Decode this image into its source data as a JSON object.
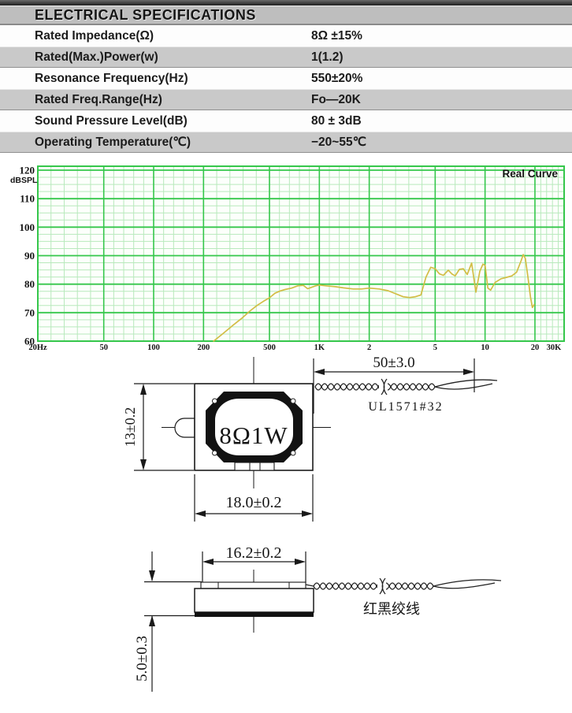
{
  "spec_table": {
    "title": "ELECTRICAL SPECIFICATIONS",
    "rows": [
      {
        "label": "Rated Impedance(Ω)",
        "value": "8Ω ±15%"
      },
      {
        "label": "Rated(Max.)Power(w)",
        "value": "1(1.2)"
      },
      {
        "label": "Resonance Frequency(Hz)",
        "value": "550±20%"
      },
      {
        "label": "Rated Freq.Range(Hz)",
        "value": "Fo—20K"
      },
      {
        "label": "Sound Pressure Level(dB)",
        "value": "80 ± 3dB"
      },
      {
        "label": "Operating Temperature(℃)",
        "value": "−20~55℃"
      }
    ]
  },
  "chart_data": {
    "type": "line",
    "title": "",
    "legend": "Real Curve",
    "ylabel": "dBSPL",
    "x_scale": "log",
    "xlim": [
      20,
      30000
    ],
    "ylim": [
      60,
      120
    ],
    "grid": true,
    "legend_position": "top-right-inside",
    "y_major_ticks": [
      120,
      110,
      100,
      90,
      80,
      70,
      60
    ],
    "x_tick_values": [
      20,
      50,
      100,
      200,
      500,
      1000,
      2000,
      5000,
      10000,
      20000,
      30000
    ],
    "x_tick_labels": [
      "20Hz",
      "50",
      "100",
      "200",
      "500",
      "1K",
      "2",
      "5",
      "10",
      "20",
      "30K"
    ],
    "colors": {
      "curve": "#d2bd45",
      "grid_major": "#35c74b",
      "grid_minor": "#b8e9bc",
      "axis_text": "#3b3b9c",
      "ylabel_text": "#cc2a2a",
      "legend_text": "#1b7a1b",
      "plot_bg": "#fcfffb"
    },
    "series": [
      {
        "name": "Real Curve",
        "points": [
          [
            230,
            60
          ],
          [
            260,
            62.5
          ],
          [
            300,
            65.5
          ],
          [
            340,
            68
          ],
          [
            380,
            70.5
          ],
          [
            420,
            72.5
          ],
          [
            460,
            74
          ],
          [
            500,
            75.2
          ],
          [
            540,
            76.8
          ],
          [
            580,
            77.6
          ],
          [
            620,
            78.1
          ],
          [
            680,
            78.6
          ],
          [
            740,
            79.4
          ],
          [
            800,
            79.6
          ],
          [
            850,
            78.4
          ],
          [
            900,
            78.9
          ],
          [
            950,
            79.4
          ],
          [
            1000,
            79.7
          ],
          [
            1100,
            79.4
          ],
          [
            1250,
            79.1
          ],
          [
            1400,
            78.7
          ],
          [
            1600,
            78.3
          ],
          [
            1800,
            78.3
          ],
          [
            2000,
            78.6
          ],
          [
            2300,
            78.3
          ],
          [
            2600,
            77.7
          ],
          [
            2900,
            76.6
          ],
          [
            3200,
            75.6
          ],
          [
            3500,
            75.3
          ],
          [
            3800,
            75.6
          ],
          [
            4100,
            76.2
          ],
          [
            4400,
            82.5
          ],
          [
            4700,
            85.9
          ],
          [
            5000,
            85.4
          ],
          [
            5300,
            83.6
          ],
          [
            5600,
            83.1
          ],
          [
            6000,
            84.9
          ],
          [
            6300,
            83.6
          ],
          [
            6600,
            82.9
          ],
          [
            7000,
            85.2
          ],
          [
            7400,
            85.4
          ],
          [
            7800,
            83.4
          ],
          [
            8300,
            87.4
          ],
          [
            8800,
            77.2
          ],
          [
            9300,
            84.5
          ],
          [
            9700,
            87
          ],
          [
            10000,
            86.6
          ],
          [
            10400,
            78.6
          ],
          [
            10800,
            77.9
          ],
          [
            11500,
            80.6
          ],
          [
            12500,
            81.9
          ],
          [
            13500,
            82.4
          ],
          [
            14500,
            82.9
          ],
          [
            15500,
            84.2
          ],
          [
            16500,
            88.2
          ],
          [
            17000,
            90.4
          ],
          [
            17500,
            89
          ],
          [
            18200,
            82
          ],
          [
            18800,
            75.5
          ],
          [
            19300,
            71.8
          ],
          [
            19800,
            72.8
          ]
        ]
      }
    ]
  },
  "drawing_front": {
    "marking": "8Ω1W",
    "dim_height": "13±0.2",
    "dim_width": "18.0±0.2",
    "dim_wire_length": "50±3.0",
    "wire_spec": "UL1571#32"
  },
  "drawing_side": {
    "dim_width": "16.2±0.2",
    "dim_height": "5.0±0.3",
    "wire_label": "红黑绞线"
  }
}
